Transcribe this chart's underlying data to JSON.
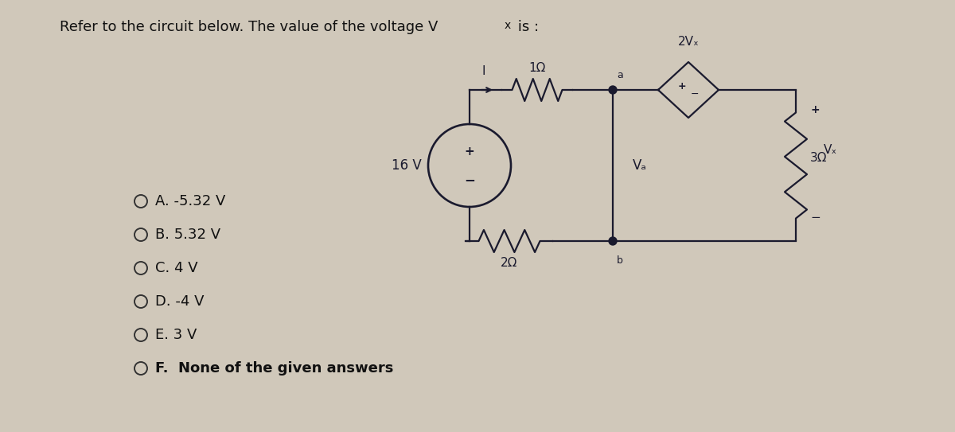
{
  "title_part1": "Refer to the circuit below. The value of the voltage V",
  "title_vx": "x",
  "title_part2": " is :",
  "bg_color": "#d0c8ba",
  "text_color": "#1a1a1a",
  "wire_color": "#1a1a2e",
  "options": [
    "A. -5.32 V",
    "B. 5.32 V",
    "C. 4 V",
    "D. -4 V",
    "E. 3 V",
    "F.  None of the given answers"
  ],
  "option_bold": [
    false,
    false,
    false,
    false,
    false,
    true
  ],
  "vs_label": "16 V",
  "r1_label": "1Ω",
  "r2_label": "2Ω",
  "r3_label": "3Ω",
  "dep_label": "2Vₓ",
  "va_label": "Vₐ",
  "vx_label": "Vₓ",
  "I_label": "I",
  "node_a": "a",
  "node_b": "b"
}
